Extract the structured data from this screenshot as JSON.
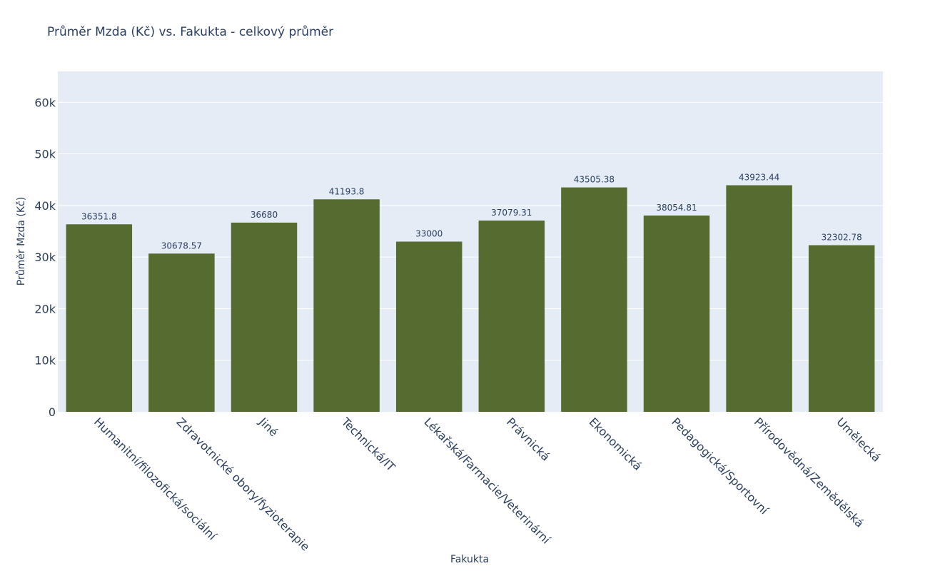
{
  "chart_data": {
    "type": "bar",
    "title": "Průměr Mzda (Kč) vs. Fakukta - celkový průměr",
    "xlabel": "Fakukta",
    "ylabel": "Průměr Mzda (Kč)",
    "ylim": [
      0,
      66000
    ],
    "yticks": [
      0,
      10000,
      20000,
      30000,
      40000,
      50000,
      60000
    ],
    "ytick_labels": [
      "0",
      "10k",
      "20k",
      "30k",
      "40k",
      "50k",
      "60k"
    ],
    "grid": true,
    "bar_color": "#556b2f",
    "plot_bg": "#e5ecf6",
    "categories": [
      "Humanitní/filozofická/sociální",
      "Zdravotnické obory/fyzioterapie",
      "Jiné",
      "Technická/IT",
      "Lékařská/Farmacie/Veterinární",
      "Právnická",
      "Ekonomická",
      "Pedagogická/Sportovní",
      "Přírodovědná/Zemědělská",
      "Umělecká"
    ],
    "values": [
      36351.8,
      30678.57,
      36680,
      41193.8,
      33000,
      37079.31,
      43505.38,
      38054.81,
      43923.44,
      32302.78
    ],
    "value_labels": [
      "36351.8",
      "30678.57",
      "36680",
      "41193.8",
      "33000",
      "37079.31",
      "43505.38",
      "38054.81",
      "43923.44",
      "32302.78"
    ]
  }
}
